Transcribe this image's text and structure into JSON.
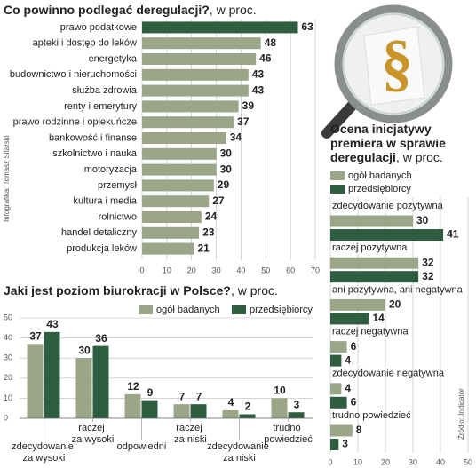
{
  "credit": "Infografika: Tomasz Sitarski",
  "source": "Źródło: Indicator",
  "chart_data": [
    {
      "type": "hbar",
      "title": "Co powinno podlegać deregulacji?",
      "title_suffix": ", w proc.",
      "categories": [
        "prawo podatkowe",
        "apteki i dostęp do leków",
        "energetyka",
        "budownictwo i nieruchomości",
        "służba zdrowia",
        "renty i emerytury",
        "prawo rodzinne i opiekuńcze",
        "bankowość i finanse",
        "szkolnictwo i nauka",
        "motoryzacja",
        "przemysł",
        "kultura i media",
        "rolnictwo",
        "handel detaliczny",
        "produkcja leków"
      ],
      "values": [
        63,
        48,
        46,
        43,
        43,
        39,
        37,
        34,
        30,
        30,
        29,
        27,
        24,
        23,
        21
      ],
      "colors": [
        "#2e5e3f",
        "#9ba689",
        "#9ba689",
        "#9ba689",
        "#9ba689",
        "#9ba689",
        "#9ba689",
        "#9ba689",
        "#9ba689",
        "#9ba689",
        "#9ba689",
        "#9ba689",
        "#9ba689",
        "#9ba689",
        "#9ba689"
      ],
      "xlim": [
        0,
        70
      ],
      "xticks": [
        0,
        10,
        20,
        30,
        40,
        50,
        60,
        70
      ],
      "grid": true
    },
    {
      "type": "groupedbar",
      "title": "Jaki jest poziom biurokracji w Polsce?",
      "title_suffix": ", w proc.",
      "categories": [
        "zdecydowanie za wysoki",
        "raczej za wysoki",
        "odpowiedni",
        "raczej za niski",
        "zdecydowanie za niski",
        "trudno powiedzieć"
      ],
      "series": [
        {
          "name": "ogół badanych",
          "color": "#9ba689",
          "values": [
            37,
            30,
            12,
            7,
            4,
            10
          ]
        },
        {
          "name": "przedsiębiorcy",
          "color": "#2e5e3f",
          "values": [
            43,
            36,
            9,
            7,
            2,
            3
          ]
        }
      ],
      "ylim": [
        0,
        50
      ],
      "yticks": [
        0,
        10,
        20,
        30,
        40,
        50
      ],
      "grid": true
    },
    {
      "type": "grouphbar",
      "title": "Ocena inicjatywy premiera w sprawie deregulacji",
      "title_suffix": ", w proc.",
      "categories": [
        "zdecydowanie pozytywna",
        "raczej pozytywna",
        "ani pozytywna, ani negatywna",
        "raczej negatywna",
        "zdecydowanie negatywna",
        "trudno powiedzieć"
      ],
      "series": [
        {
          "name": "ogół badanych",
          "color": "#9ba689",
          "values": [
            30,
            32,
            20,
            6,
            4,
            8
          ]
        },
        {
          "name": "przedsiębiorcy",
          "color": "#2e5e3f",
          "values": [
            41,
            32,
            14,
            4,
            6,
            3
          ]
        }
      ],
      "xlim": [
        0,
        50
      ],
      "xticks": [
        0,
        10,
        20,
        30,
        40,
        50
      ],
      "grid": true
    }
  ]
}
